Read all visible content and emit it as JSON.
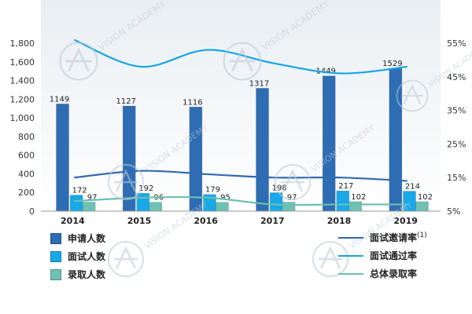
{
  "chart_data": {
    "type": "bar",
    "categories": [
      "2014",
      "2015",
      "2016",
      "2017",
      "2018",
      "2019"
    ],
    "series": [
      {
        "name": "申请人数",
        "kind": "bar",
        "axis": "left",
        "color": "#2E6DB4",
        "values": [
          1149,
          1127,
          1116,
          1317,
          1449,
          1529
        ]
      },
      {
        "name": "面试人数",
        "kind": "bar",
        "axis": "left",
        "color": "#19A8E8",
        "values": [
          172,
          192,
          179,
          198,
          217,
          214
        ]
      },
      {
        "name": "录取人数",
        "kind": "bar",
        "axis": "left",
        "color": "#6FC2B3",
        "values": [
          97,
          96,
          95,
          97,
          102,
          102
        ]
      },
      {
        "name": "面试邀请率",
        "superscript": "(1)",
        "kind": "line",
        "axis": "right",
        "color": "#2F6BB0",
        "values": [
          15,
          17,
          16,
          15,
          15,
          14
        ]
      },
      {
        "name": "面试通过率",
        "kind": "line",
        "axis": "right",
        "color": "#16A6E6",
        "values": [
          56,
          48,
          53,
          49,
          46,
          48
        ]
      },
      {
        "name": "总体录取率",
        "kind": "line",
        "axis": "right",
        "color": "#6BBFB2",
        "values": [
          8,
          9,
          9,
          7,
          7,
          7
        ]
      }
    ],
    "left_axis": {
      "ylim": [
        0,
        1800
      ],
      "ticks": [
        0,
        200,
        400,
        600,
        800,
        1000,
        1200,
        1400,
        1600,
        1800
      ],
      "tick_labels": [
        "0",
        "200",
        "400",
        "600",
        "800",
        "1,000",
        "1,200",
        "1,400",
        "1,600",
        "1,800"
      ]
    },
    "right_axis": {
      "ylim": [
        5,
        55
      ],
      "ticks": [
        5,
        15,
        25,
        35,
        45,
        55
      ],
      "tick_labels": [
        "5%",
        "15%",
        "25%",
        "35%",
        "45%",
        "55%"
      ]
    },
    "legend_position": "bottom",
    "watermark": "VISION ACADEMY 唯寻国际教育 A-LEVEL·IB·AP·GCSE"
  }
}
